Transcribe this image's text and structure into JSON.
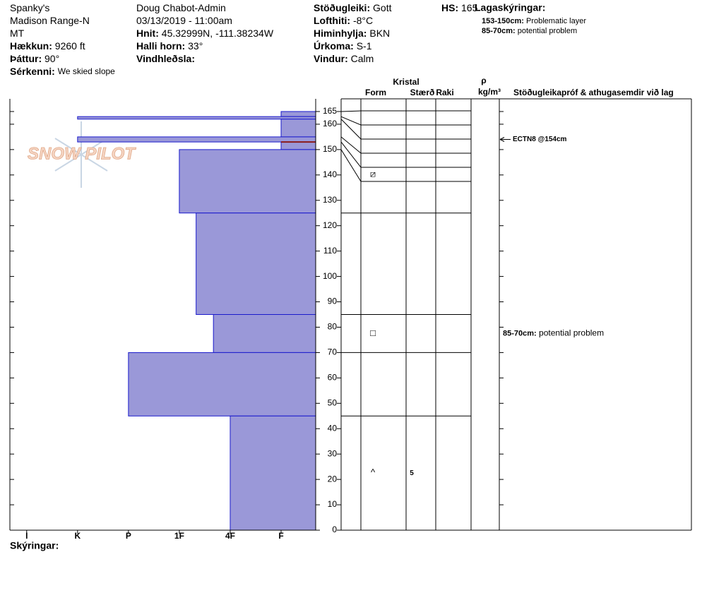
{
  "header": {
    "columns": [
      [
        {
          "value": "Spanky's"
        },
        {
          "value": "Madison Range-N"
        },
        {
          "value": "MT"
        },
        {
          "label": "Hækkun:",
          "value": "9260 ft"
        },
        {
          "label": "Þáttur:",
          "value": "90°"
        },
        {
          "label": "Sérkenni:",
          "value": "We skied slope"
        }
      ],
      [
        {
          "value": "Doug Chabot-Admin"
        },
        {
          "value": "03/13/2019 - 11:00am"
        },
        {
          "label": "Hnit:",
          "value": "45.32999N, -111.38234W"
        },
        {
          "label": "Halli horn:",
          "value": "33°"
        },
        {
          "label": "Vindhleðsla:"
        }
      ],
      [
        {
          "label": "Stöðugleiki:",
          "value": "Gott"
        },
        {
          "label": "Lofthiti:",
          "value": "-8°C"
        },
        {
          "label": "Himinhylja:",
          "value": "BKN"
        },
        {
          "label": "Úrkoma:",
          "value": "S-1"
        },
        {
          "label": "Vindur:",
          "value": "Calm"
        }
      ],
      [
        {
          "label": "HS:",
          "value": "165"
        }
      ]
    ],
    "legend": {
      "title": "Lagaskýringar:",
      "entries": [
        {
          "label": "153-150cm:",
          "text": "Problematic layer"
        },
        {
          "label": "85-70cm:",
          "text": "potential problem"
        }
      ]
    }
  },
  "watermark": "SNOW PILOT",
  "table_headers": {
    "crystal": "Kristal",
    "form": "Form",
    "size": "Stærð",
    "moisture": "Raki",
    "density_symbol": "ρ",
    "density_unit": "kg/m³",
    "comments": "Stöðugleikapróf & athugasemdir við lag"
  },
  "footer": "Skýringar:",
  "chart_data": {
    "type": "snow-profile",
    "ylim": [
      0,
      170
    ],
    "yticks": [
      0,
      10,
      20,
      30,
      40,
      50,
      60,
      70,
      80,
      90,
      100,
      110,
      120,
      130,
      140,
      150,
      160,
      165
    ],
    "xlim": [
      6.33,
      0.32
    ],
    "xticks": [
      {
        "value": 6,
        "label": "I"
      },
      {
        "value": 5,
        "label": "K"
      },
      {
        "value": 4,
        "label": "P"
      },
      {
        "value": 3,
        "label": "1F"
      },
      {
        "value": 2,
        "label": "4F"
      },
      {
        "value": 1,
        "label": "F"
      }
    ],
    "color": "#9a98d8",
    "edge_color": "#1a1acc",
    "problem_color": "#8b1a1a",
    "layers": [
      {
        "top": 165,
        "bottom": 163,
        "hardness": 1
      },
      {
        "top": 163,
        "bottom": 162,
        "hardness": 5
      },
      {
        "top": 162,
        "bottom": 155,
        "hardness": 1
      },
      {
        "top": 155,
        "bottom": 153,
        "hardness": 5
      },
      {
        "top": 153,
        "bottom": 150,
        "hardness": 1,
        "form": "⧄",
        "problem": true
      },
      {
        "top": 150,
        "bottom": 125,
        "hardness": 3
      },
      {
        "top": 125,
        "bottom": 85,
        "hardness": 2.67
      },
      {
        "top": 85,
        "bottom": 70,
        "hardness": 2.33,
        "form": "□",
        "comment": {
          "label": "85-70cm:",
          "text": "potential problem"
        }
      },
      {
        "top": 70,
        "bottom": 45,
        "hardness": 4
      },
      {
        "top": 45,
        "bottom": 0,
        "hardness": 2,
        "form": "^",
        "size": "5"
      }
    ],
    "tests": [
      {
        "depth": 154,
        "text": "ECTN8 @154cm"
      }
    ]
  }
}
